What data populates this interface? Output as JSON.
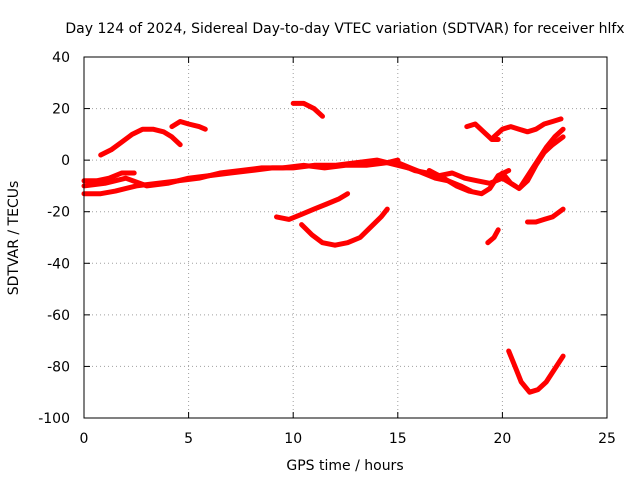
{
  "chart_data": {
    "type": "line",
    "title": "Day 124 of 2024, Sidereal Day-to-day VTEC variation (SDTVAR) for receiver hlfx",
    "xlabel": "GPS time / hours",
    "ylabel": "SDTVAR / TECUs",
    "xlim": [
      0,
      25
    ],
    "ylim": [
      -100,
      40
    ],
    "xticks": [
      0,
      5,
      10,
      15,
      20,
      25
    ],
    "yticks": [
      -100,
      -80,
      -60,
      -40,
      -20,
      0,
      20,
      40
    ],
    "xtick_labels": [
      "0",
      "5",
      "10",
      "15",
      "20",
      "25"
    ],
    "ytick_labels": [
      "-100",
      "-80",
      "-60",
      "-40",
      "-20",
      "0",
      "20",
      "40"
    ],
    "grid": true,
    "series_color": "#ff0000",
    "series": [
      {
        "points": [
          [
            0.0,
            -10
          ],
          [
            1.0,
            -9
          ],
          [
            2.0,
            -7
          ],
          [
            3.0,
            -10
          ],
          [
            4.0,
            -9
          ],
          [
            5.0,
            -7
          ],
          [
            6.0,
            -6
          ],
          [
            7.0,
            -5
          ],
          [
            8.0,
            -4
          ],
          [
            9.0,
            -3
          ],
          [
            10.0,
            -3
          ],
          [
            11.0,
            -2
          ],
          [
            12.0,
            -2
          ],
          [
            13.0,
            -1
          ],
          [
            14.0,
            0
          ],
          [
            15.0,
            -2
          ],
          [
            15.5,
            -3
          ]
        ]
      },
      {
        "points": [
          [
            0.0,
            -13
          ],
          [
            0.8,
            -13
          ],
          [
            1.5,
            -12
          ],
          [
            2.5,
            -10
          ],
          [
            3.5,
            -9
          ],
          [
            4.5,
            -8
          ],
          [
            5.5,
            -7
          ],
          [
            6.5,
            -5
          ],
          [
            7.5,
            -4
          ],
          [
            8.5,
            -3
          ],
          [
            9.5,
            -3
          ],
          [
            10.5,
            -2
          ],
          [
            11.5,
            -3
          ],
          [
            12.5,
            -2
          ],
          [
            13.5,
            -2
          ],
          [
            14.5,
            -1
          ],
          [
            15.0,
            0
          ]
        ]
      },
      {
        "points": [
          [
            0.0,
            -8
          ],
          [
            0.6,
            -8
          ],
          [
            1.2,
            -7
          ],
          [
            1.8,
            -5
          ],
          [
            2.4,
            -5
          ]
        ]
      },
      {
        "points": [
          [
            0.8,
            2
          ],
          [
            1.3,
            4
          ],
          [
            1.8,
            7
          ],
          [
            2.3,
            10
          ],
          [
            2.8,
            12
          ],
          [
            3.3,
            12
          ],
          [
            3.8,
            11
          ],
          [
            4.2,
            9
          ],
          [
            4.6,
            6
          ]
        ]
      },
      {
        "points": [
          [
            4.2,
            13
          ],
          [
            4.6,
            15
          ],
          [
            5.0,
            14
          ],
          [
            5.5,
            13
          ],
          [
            5.8,
            12
          ]
        ]
      },
      {
        "points": [
          [
            10.0,
            22
          ],
          [
            10.5,
            22
          ],
          [
            11.0,
            20
          ],
          [
            11.4,
            17
          ]
        ]
      },
      {
        "points": [
          [
            9.2,
            -22
          ],
          [
            9.8,
            -23
          ],
          [
            10.4,
            -21
          ],
          [
            11.0,
            -19
          ],
          [
            11.6,
            -17
          ],
          [
            12.2,
            -15
          ],
          [
            12.6,
            -13
          ]
        ]
      },
      {
        "points": [
          [
            10.4,
            -25
          ],
          [
            10.9,
            -29
          ],
          [
            11.4,
            -32
          ],
          [
            12.0,
            -33
          ],
          [
            12.6,
            -32
          ],
          [
            13.2,
            -30
          ],
          [
            13.7,
            -26
          ],
          [
            14.2,
            -22
          ],
          [
            14.5,
            -19
          ]
        ]
      },
      {
        "points": [
          [
            15.0,
            -1
          ],
          [
            15.6,
            -3
          ],
          [
            16.2,
            -5
          ],
          [
            16.8,
            -7
          ],
          [
            17.4,
            -8
          ],
          [
            18.0,
            -10
          ],
          [
            18.5,
            -12
          ]
        ]
      },
      {
        "points": [
          [
            15.2,
            -2
          ],
          [
            15.8,
            -4
          ],
          [
            16.4,
            -5
          ],
          [
            17.0,
            -6
          ],
          [
            17.6,
            -5
          ],
          [
            18.2,
            -7
          ],
          [
            18.8,
            -8
          ],
          [
            19.4,
            -9
          ],
          [
            20.0,
            -7
          ],
          [
            20.6,
            -10
          ]
        ]
      },
      {
        "points": [
          [
            16.5,
            -4
          ],
          [
            17.2,
            -7
          ],
          [
            17.8,
            -10
          ],
          [
            18.4,
            -12
          ],
          [
            19.0,
            -13
          ],
          [
            19.4,
            -11
          ],
          [
            19.8,
            -6
          ],
          [
            20.3,
            -4
          ]
        ]
      },
      {
        "points": [
          [
            18.3,
            13
          ],
          [
            18.7,
            14
          ],
          [
            19.1,
            11
          ],
          [
            19.5,
            8
          ],
          [
            19.8,
            8
          ]
        ]
      },
      {
        "points": [
          [
            19.6,
            9
          ],
          [
            20.0,
            12
          ],
          [
            20.4,
            13
          ],
          [
            20.8,
            12
          ],
          [
            21.2,
            11
          ],
          [
            21.6,
            12
          ],
          [
            22.0,
            14
          ],
          [
            22.4,
            15
          ],
          [
            22.8,
            16
          ]
        ]
      },
      {
        "points": [
          [
            19.3,
            -32
          ],
          [
            19.6,
            -30
          ],
          [
            19.8,
            -27
          ]
        ]
      },
      {
        "points": [
          [
            20.0,
            -5
          ],
          [
            20.4,
            -9
          ],
          [
            20.8,
            -11
          ],
          [
            21.2,
            -8
          ],
          [
            21.6,
            -2
          ],
          [
            22.0,
            3
          ],
          [
            22.4,
            6
          ],
          [
            22.9,
            9
          ]
        ]
      },
      {
        "points": [
          [
            20.9,
            -10
          ],
          [
            21.3,
            -5
          ],
          [
            21.7,
            0
          ],
          [
            22.1,
            5
          ],
          [
            22.5,
            9
          ],
          [
            22.9,
            12
          ]
        ]
      },
      {
        "points": [
          [
            21.2,
            -24
          ],
          [
            21.6,
            -24
          ],
          [
            22.0,
            -23
          ],
          [
            22.4,
            -22
          ],
          [
            22.9,
            -19
          ]
        ]
      },
      {
        "points": [
          [
            20.3,
            -74
          ],
          [
            20.6,
            -80
          ],
          [
            20.9,
            -86
          ],
          [
            21.3,
            -90
          ],
          [
            21.7,
            -89
          ],
          [
            22.1,
            -86
          ],
          [
            22.5,
            -81
          ],
          [
            22.9,
            -76
          ]
        ]
      }
    ]
  }
}
